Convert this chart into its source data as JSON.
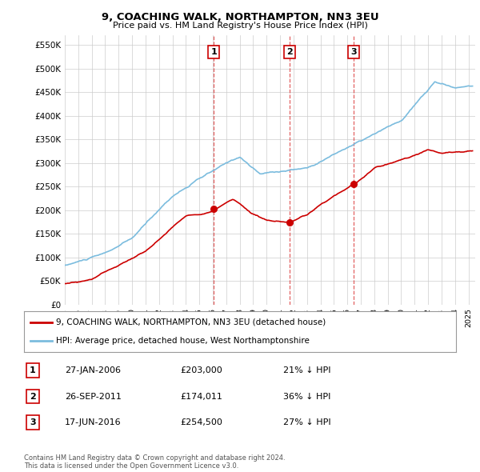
{
  "title": "9, COACHING WALK, NORTHAMPTON, NN3 3EU",
  "subtitle": "Price paid vs. HM Land Registry's House Price Index (HPI)",
  "ylabel_ticks": [
    "£0",
    "£50K",
    "£100K",
    "£150K",
    "£200K",
    "£250K",
    "£300K",
    "£350K",
    "£400K",
    "£450K",
    "£500K",
    "£550K"
  ],
  "ytick_values": [
    0,
    50000,
    100000,
    150000,
    200000,
    250000,
    300000,
    350000,
    400000,
    450000,
    500000,
    550000
  ],
  "ylim": [
    0,
    570000
  ],
  "background_color": "#ffffff",
  "grid_color": "#cccccc",
  "sale_color": "#cc0000",
  "hpi_color": "#7bbcde",
  "vline_color": "#dd4444",
  "marker_years": [
    2006.07,
    2011.73,
    2016.46
  ],
  "marker_prices": [
    203000,
    174011,
    254500
  ],
  "transaction_labels": [
    "1",
    "2",
    "3"
  ],
  "legend_sale": "9, COACHING WALK, NORTHAMPTON, NN3 3EU (detached house)",
  "legend_hpi": "HPI: Average price, detached house, West Northamptonshire",
  "table_rows": [
    {
      "num": "1",
      "date": "27-JAN-2006",
      "price": "£203,000",
      "pct": "21% ↓ HPI"
    },
    {
      "num": "2",
      "date": "26-SEP-2011",
      "price": "£174,011",
      "pct": "36% ↓ HPI"
    },
    {
      "num": "3",
      "date": "17-JUN-2016",
      "price": "£254,500",
      "pct": "27% ↓ HPI"
    }
  ],
  "footnote": "Contains HM Land Registry data © Crown copyright and database right 2024.\nThis data is licensed under the Open Government Licence v3.0.",
  "xmin": 1995.0,
  "xmax": 2025.5
}
